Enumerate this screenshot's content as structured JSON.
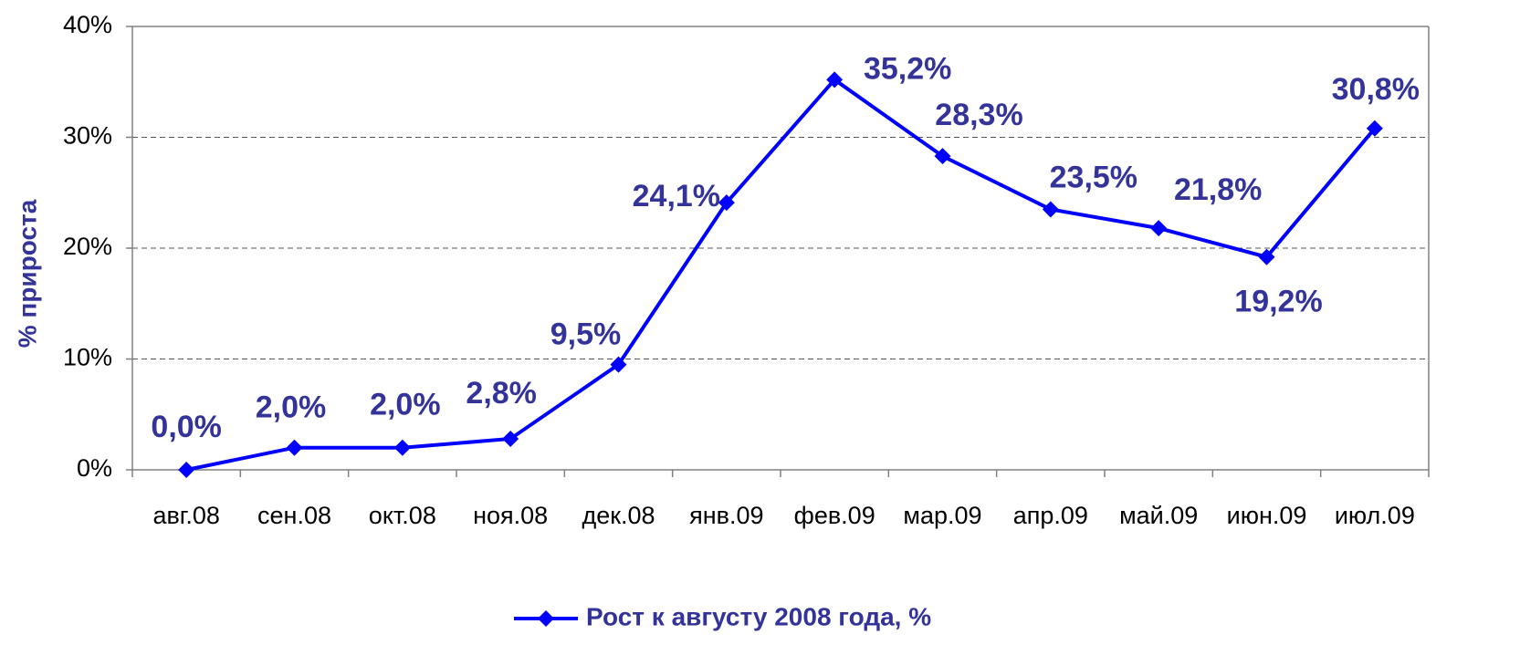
{
  "chart_data": {
    "type": "line",
    "y_label": "% прироста",
    "categories": [
      "авг.08",
      "сен.08",
      "окт.08",
      "ноя.08",
      "дек.08",
      "янв.09",
      "фев.09",
      "мар.09",
      "апр.09",
      "май.09",
      "июн.09",
      "июл.09"
    ],
    "series": [
      {
        "name": "Рост к августу 2008 года, %",
        "color": "#0000ff",
        "values": [
          0.0,
          2.0,
          2.0,
          2.8,
          9.5,
          24.1,
          35.2,
          28.3,
          23.5,
          21.8,
          19.2,
          30.8
        ],
        "value_labels": [
          "0,0%",
          "2,0%",
          "2,0%",
          "2,8%",
          "9,5%",
          "24,1%",
          "35,2%",
          "28,3%",
          "23,5%",
          "21,8%",
          "19,2%",
          "30,8%"
        ]
      }
    ],
    "ylim": [
      0,
      40
    ],
    "yticks": [
      {
        "value": 0,
        "label": "0%"
      },
      {
        "value": 10,
        "label": "10%"
      },
      {
        "value": 20,
        "label": "20%"
      },
      {
        "value": 30,
        "label": "30%"
      },
      {
        "value": 40,
        "label": "40%"
      }
    ],
    "grid": true,
    "legend": "bottom"
  }
}
